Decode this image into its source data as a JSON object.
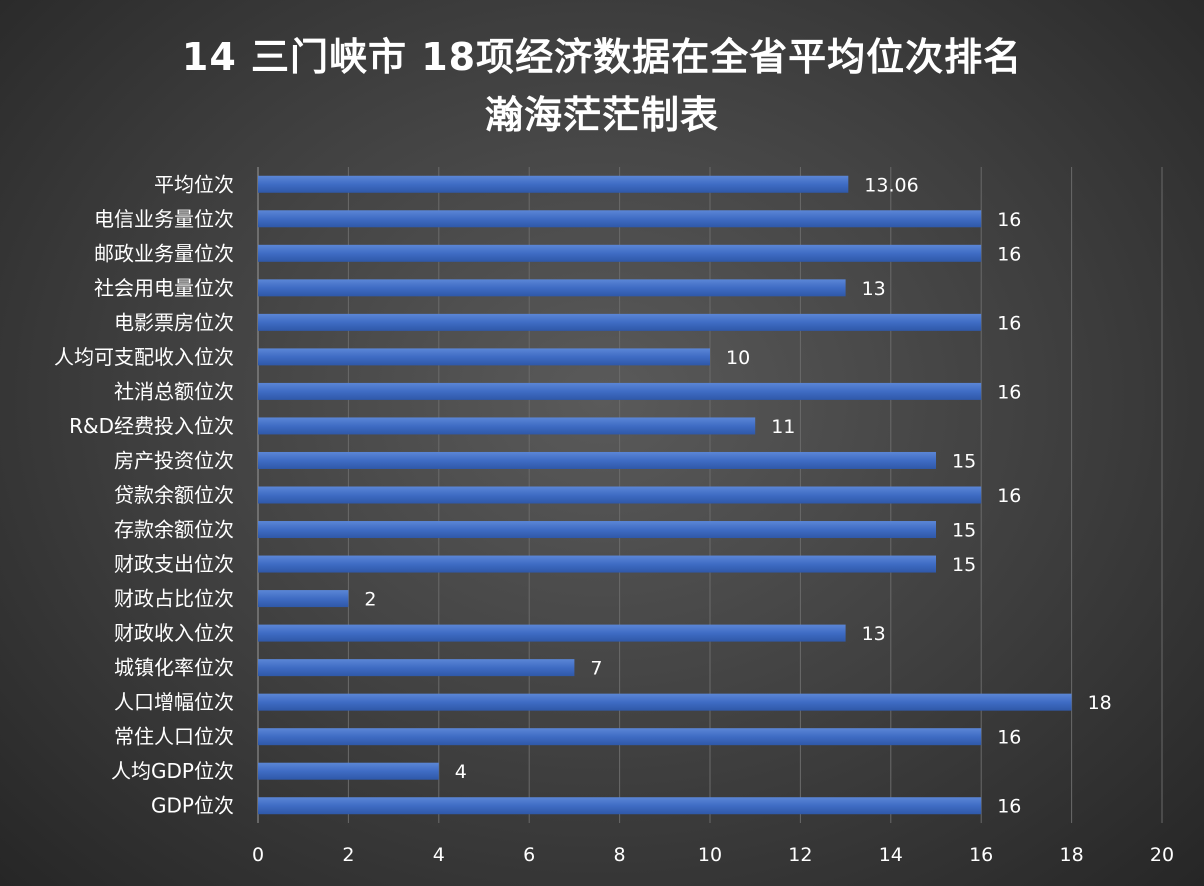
{
  "chart_data": {
    "type": "bar",
    "orientation": "horizontal",
    "title": "14 三门峡市  18项经济数据在全省平均位次排名",
    "subtitle": "瀚海茫茫制表",
    "categories": [
      "平均位次",
      "电信业务量位次",
      "邮政业务量位次",
      "社会用电量位次",
      "电影票房位次",
      "人均可支配收入位次",
      "社消总额位次",
      "R&D经费投入位次",
      "房产投资位次",
      "贷款余额位次",
      "存款余额位次",
      "财政支出位次",
      "财政占比位次",
      "财政收入位次",
      "城镇化率位次",
      "人口增幅位次",
      "常住人口位次",
      "人均GDP位次",
      "GDP位次"
    ],
    "values": [
      13.06,
      16,
      16,
      13,
      16,
      10,
      16,
      11,
      15,
      16,
      15,
      15,
      2,
      13,
      7,
      18,
      16,
      4,
      16
    ],
    "value_labels": [
      "13.06",
      "16",
      "16",
      "13",
      "16",
      "10",
      "16",
      "11",
      "15",
      "16",
      "15",
      "15",
      "2",
      "13",
      "7",
      "18",
      "16",
      "4",
      "16"
    ],
    "xlim": [
      0,
      20
    ],
    "xticks": [
      "0",
      "2",
      "4",
      "6",
      "8",
      "10",
      "12",
      "14",
      "16",
      "18",
      "20"
    ],
    "grid": true,
    "bar_color": "#3f6cc4",
    "background": "#3d3d3d",
    "text_color": "#ffffff"
  }
}
